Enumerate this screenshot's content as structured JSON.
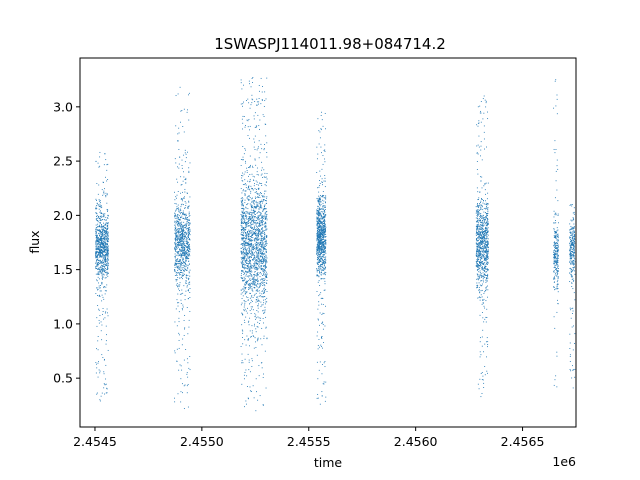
{
  "chart_data": {
    "type": "scatter",
    "title": "1SWASPJ114011.98+084714.2",
    "xlabel": "time",
    "ylabel": "flux",
    "x_offset_label": "1e6",
    "xlim": [
      2454430,
      2456750
    ],
    "ylim": [
      0.05,
      3.45
    ],
    "x_ticks": [
      2454500,
      2455000,
      2455500,
      2456000,
      2456500
    ],
    "x_tick_labels": [
      "2.4545",
      "2.4550",
      "2.4555",
      "2.4560",
      "2.4565"
    ],
    "y_ticks": [
      0.5,
      1.0,
      1.5,
      2.0,
      2.5,
      3.0
    ],
    "y_tick_labels": [
      "0.5",
      "1.0",
      "1.5",
      "2.0",
      "2.5",
      "3.0"
    ],
    "grid": false,
    "marker_color": "#1f77b4",
    "clusters": [
      {
        "x_start": 2454503,
        "x_end": 2454563,
        "center": 1.72,
        "spread": 0.17,
        "min": 0.29,
        "max": 2.58,
        "density": "medium"
      },
      {
        "x_start": 2454872,
        "x_end": 2454945,
        "center": 1.74,
        "spread": 0.2,
        "min": 0.22,
        "max": 3.18,
        "density": "medium"
      },
      {
        "x_start": 2455183,
        "x_end": 2455305,
        "center": 1.73,
        "spread": 0.3,
        "min": 0.2,
        "max": 3.27,
        "density": "high"
      },
      {
        "x_start": 2455537,
        "x_end": 2455580,
        "center": 1.8,
        "spread": 0.18,
        "min": 0.26,
        "max": 2.95,
        "density": "medium"
      },
      {
        "x_start": 2456283,
        "x_end": 2456340,
        "center": 1.75,
        "spread": 0.2,
        "min": 0.33,
        "max": 3.1,
        "density": "medium"
      },
      {
        "x_start": 2456645,
        "x_end": 2456668,
        "center": 1.65,
        "spread": 0.15,
        "min": 0.42,
        "max": 3.25,
        "density": "low"
      },
      {
        "x_start": 2456720,
        "x_end": 2456745,
        "center": 1.7,
        "spread": 0.14,
        "min": 0.41,
        "max": 2.1,
        "density": "low"
      }
    ]
  }
}
